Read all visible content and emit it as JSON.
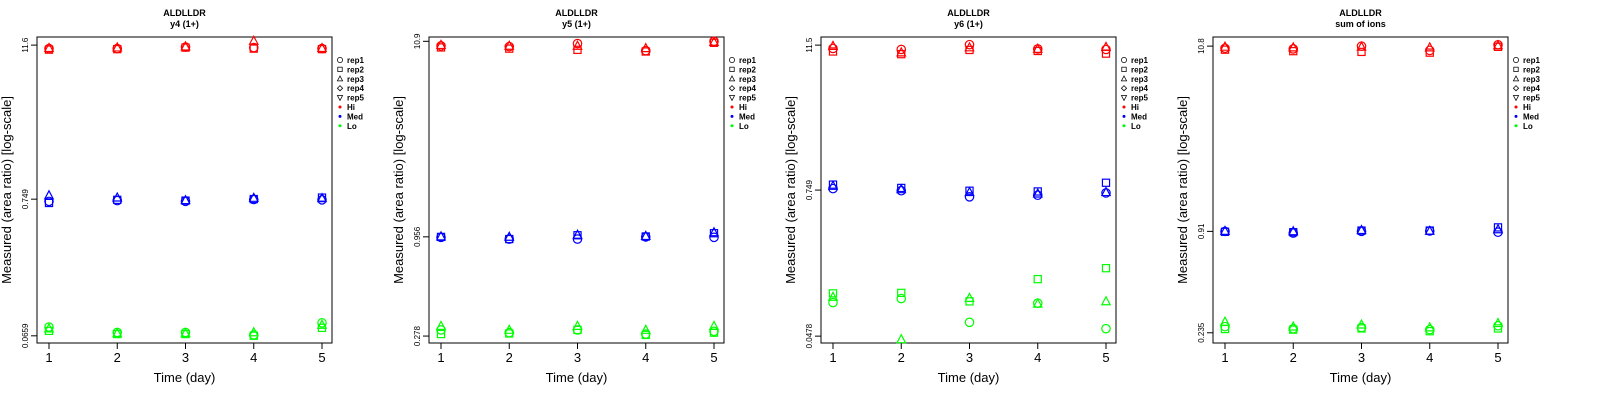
{
  "chart_data": [
    {
      "type": "scatter",
      "title": "ALDLLDR",
      "subtitle": "y4 (1+)",
      "xlabel": "Time (day)",
      "ylabel": "Measured (area ratio) [log-scale]",
      "x_ticks": [
        "1",
        "2",
        "3",
        "4",
        "5"
      ],
      "y_ticks": [
        {
          "value": 0.0659,
          "label": "0.0659"
        },
        {
          "value": 0.749,
          "label": "0.749"
        },
        {
          "value": 11.6,
          "label": "11.6"
        }
      ],
      "ylim": [
        0.058,
        13.4
      ],
      "log_y": true,
      "legend": {
        "position": "right",
        "entries": [
          {
            "label": "rep1",
            "marker": "circle"
          },
          {
            "label": "rep2",
            "marker": "square"
          },
          {
            "label": "rep3",
            "marker": "triangle-up"
          },
          {
            "label": "rep4",
            "marker": "diamond"
          },
          {
            "label": "rep5",
            "marker": "triangle-down"
          },
          {
            "label": "Hi",
            "color": "#ff0000"
          },
          {
            "label": "Med",
            "color": "#0000ff"
          },
          {
            "label": "Lo",
            "color": "#00ff00"
          }
        ]
      },
      "colors": {
        "Hi": "#ff0000",
        "Med": "#0000ff",
        "Lo": "#00ff00"
      },
      "series": [
        {
          "group": "Hi",
          "rep": "rep1",
          "x": [
            1,
            2,
            3,
            4,
            5
          ],
          "y": [
            10.9,
            10.9,
            11.2,
            11.1,
            10.9
          ]
        },
        {
          "group": "Hi",
          "rep": "rep2",
          "x": [
            1,
            2,
            3,
            4,
            5
          ],
          "y": [
            10.7,
            10.8,
            11.1,
            10.9,
            10.8
          ]
        },
        {
          "group": "Hi",
          "rep": "rep3",
          "x": [
            1,
            2,
            3,
            4,
            5
          ],
          "y": [
            11.0,
            11.1,
            11.3,
            12.5,
            11.0
          ]
        },
        {
          "group": "Med",
          "rep": "rep1",
          "x": [
            1,
            2,
            3,
            4,
            5
          ],
          "y": [
            0.72,
            0.73,
            0.72,
            0.745,
            0.74
          ]
        },
        {
          "group": "Med",
          "rep": "rep2",
          "x": [
            1,
            2,
            3,
            4,
            5
          ],
          "y": [
            0.7,
            0.74,
            0.73,
            0.75,
            0.77
          ]
        },
        {
          "group": "Med",
          "rep": "rep3",
          "x": [
            1,
            2,
            3,
            4,
            5
          ],
          "y": [
            0.8,
            0.77,
            0.735,
            0.765,
            0.76
          ]
        },
        {
          "group": "Lo",
          "rep": "rep1",
          "x": [
            1,
            2,
            3,
            4,
            5
          ],
          "y": [
            0.077,
            0.07,
            0.07,
            0.067,
            0.083
          ]
        },
        {
          "group": "Lo",
          "rep": "rep2",
          "x": [
            1,
            2,
            3,
            4,
            5
          ],
          "y": [
            0.072,
            0.068,
            0.068,
            0.066,
            0.076
          ]
        },
        {
          "group": "Lo",
          "rep": "rep3",
          "x": [
            1,
            2,
            3,
            4,
            5
          ],
          "y": [
            0.075,
            0.069,
            0.069,
            0.07,
            0.08
          ]
        }
      ]
    },
    {
      "type": "scatter",
      "title": "ALDLLDR",
      "subtitle": "y5 (1+)",
      "xlabel": "Time (day)",
      "ylabel": "Measured (area ratio) [log-scale]",
      "x_ticks": [
        "1",
        "2",
        "3",
        "4",
        "5"
      ],
      "y_ticks": [
        {
          "value": 0.278,
          "label": "0.278"
        },
        {
          "value": 0.956,
          "label": "0.956"
        },
        {
          "value": 10.9,
          "label": "10.9"
        }
      ],
      "ylim": [
        0.255,
        11.5
      ],
      "log_y": true,
      "legend": {
        "position": "right",
        "entries": [
          {
            "label": "rep1",
            "marker": "circle"
          },
          {
            "label": "rep2",
            "marker": "square"
          },
          {
            "label": "rep3",
            "marker": "triangle-up"
          },
          {
            "label": "rep4",
            "marker": "diamond"
          },
          {
            "label": "rep5",
            "marker": "triangle-down"
          },
          {
            "label": "Hi",
            "color": "#ff0000"
          },
          {
            "label": "Med",
            "color": "#0000ff"
          },
          {
            "label": "Lo",
            "color": "#00ff00"
          }
        ]
      },
      "colors": {
        "Hi": "#ff0000",
        "Med": "#0000ff",
        "Lo": "#00ff00"
      },
      "series": [
        {
          "group": "Hi",
          "rep": "rep1",
          "x": [
            1,
            2,
            3,
            4,
            5
          ],
          "y": [
            10.3,
            10.2,
            10.6,
            9.7,
            10.9
          ]
        },
        {
          "group": "Hi",
          "rep": "rep2",
          "x": [
            1,
            2,
            3,
            4,
            5
          ],
          "y": [
            10.1,
            9.95,
            9.8,
            9.6,
            10.7
          ]
        },
        {
          "group": "Hi",
          "rep": "rep3",
          "x": [
            1,
            2,
            3,
            4,
            5
          ],
          "y": [
            10.4,
            10.3,
            10.3,
            10.0,
            10.8
          ]
        },
        {
          "group": "Med",
          "rep": "rep1",
          "x": [
            1,
            2,
            3,
            4,
            5
          ],
          "y": [
            0.95,
            0.93,
            0.93,
            0.955,
            0.95
          ]
        },
        {
          "group": "Med",
          "rep": "rep2",
          "x": [
            1,
            2,
            3,
            4,
            5
          ],
          "y": [
            0.955,
            0.93,
            0.975,
            0.96,
            1.0
          ]
        },
        {
          "group": "Med",
          "rep": "rep3",
          "x": [
            1,
            2,
            3,
            4,
            5
          ],
          "y": [
            0.96,
            0.955,
            0.98,
            0.965,
            1.01
          ]
        },
        {
          "group": "Lo",
          "rep": "rep1",
          "x": [
            1,
            2,
            3,
            4,
            5
          ],
          "y": [
            0.3,
            0.29,
            0.3,
            0.285,
            0.295
          ]
        },
        {
          "group": "Lo",
          "rep": "rep2",
          "x": [
            1,
            2,
            3,
            4,
            5
          ],
          "y": [
            0.285,
            0.287,
            0.3,
            0.282,
            0.29
          ]
        },
        {
          "group": "Lo",
          "rep": "rep3",
          "x": [
            1,
            2,
            3,
            4,
            5
          ],
          "y": [
            0.315,
            0.3,
            0.315,
            0.3,
            0.315
          ]
        }
      ]
    },
    {
      "type": "scatter",
      "title": "ALDLLDR",
      "subtitle": "y6 (1+)",
      "xlabel": "Time (day)",
      "ylabel": "Measured (area ratio) [log-scale]",
      "x_ticks": [
        "1",
        "2",
        "3",
        "4",
        "5"
      ],
      "y_ticks": [
        {
          "value": 0.0478,
          "label": "0.0478"
        },
        {
          "value": 0.749,
          "label": "0.749"
        },
        {
          "value": 11.5,
          "label": "11.5"
        }
      ],
      "ylim": [
        0.042,
        13.4
      ],
      "log_y": true,
      "legend": {
        "position": "right",
        "entries": [
          {
            "label": "rep1",
            "marker": "circle"
          },
          {
            "label": "rep2",
            "marker": "square"
          },
          {
            "label": "rep3",
            "marker": "triangle-up"
          },
          {
            "label": "rep4",
            "marker": "diamond"
          },
          {
            "label": "rep5",
            "marker": "triangle-down"
          },
          {
            "label": "Hi",
            "color": "#ff0000"
          },
          {
            "label": "Med",
            "color": "#0000ff"
          },
          {
            "label": "Lo",
            "color": "#00ff00"
          }
        ]
      },
      "colors": {
        "Hi": "#ff0000",
        "Med": "#0000ff",
        "Lo": "#00ff00"
      },
      "series": [
        {
          "group": "Hi",
          "rep": "rep1",
          "x": [
            1,
            2,
            3,
            4,
            5
          ],
          "y": [
            10.8,
            10.6,
            11.6,
            10.7,
            10.6
          ]
        },
        {
          "group": "Hi",
          "rep": "rep2",
          "x": [
            1,
            2,
            3,
            4,
            5
          ],
          "y": [
            10.2,
            9.7,
            10.5,
            10.3,
            9.8
          ]
        },
        {
          "group": "Hi",
          "rep": "rep3",
          "x": [
            1,
            2,
            3,
            4,
            5
          ],
          "y": [
            11.3,
            10.0,
            11.0,
            10.7,
            11.1
          ]
        },
        {
          "group": "Med",
          "rep": "rep1",
          "x": [
            1,
            2,
            3,
            4,
            5
          ],
          "y": [
            0.77,
            0.74,
            0.66,
            0.68,
            0.71
          ]
        },
        {
          "group": "Med",
          "rep": "rep2",
          "x": [
            1,
            2,
            3,
            4,
            5
          ],
          "y": [
            0.83,
            0.78,
            0.74,
            0.73,
            0.86
          ]
        },
        {
          "group": "Med",
          "rep": "rep3",
          "x": [
            1,
            2,
            3,
            4,
            5
          ],
          "y": [
            0.81,
            0.76,
            0.72,
            0.7,
            0.72
          ]
        },
        {
          "group": "Lo",
          "rep": "rep1",
          "x": [
            1,
            2,
            3,
            4,
            5
          ],
          "y": [
            0.09,
            0.097,
            0.062,
            0.089,
            0.055
          ]
        },
        {
          "group": "Lo",
          "rep": "rep2",
          "x": [
            1,
            2,
            3,
            4,
            5
          ],
          "y": [
            0.107,
            0.108,
            0.092,
            0.14,
            0.172
          ]
        },
        {
          "group": "Lo",
          "rep": "rep3",
          "x": [
            1,
            2,
            3,
            4,
            5
          ],
          "y": [
            0.1,
            0.045,
            0.098,
            0.088,
            0.092
          ]
        }
      ]
    },
    {
      "type": "scatter",
      "title": "ALDLLDR",
      "subtitle": "sum of ions",
      "xlabel": "Time (day)",
      "ylabel": "Measured (area ratio) [log-scale]",
      "x_ticks": [
        "1",
        "2",
        "3",
        "4",
        "5"
      ],
      "y_ticks": [
        {
          "value": 0.235,
          "label": "0.235"
        },
        {
          "value": 0.91,
          "label": "0.91"
        },
        {
          "value": 10.8,
          "label": "10.8"
        }
      ],
      "ylim": [
        0.205,
        12.2
      ],
      "log_y": true,
      "legend": {
        "position": "right",
        "entries": [
          {
            "label": "rep1",
            "marker": "circle"
          },
          {
            "label": "rep2",
            "marker": "square"
          },
          {
            "label": "rep3",
            "marker": "triangle-up"
          },
          {
            "label": "rep4",
            "marker": "diamond"
          },
          {
            "label": "rep5",
            "marker": "triangle-down"
          },
          {
            "label": "Hi",
            "color": "#ff0000"
          },
          {
            "label": "Med",
            "color": "#0000ff"
          },
          {
            "label": "Lo",
            "color": "#00ff00"
          }
        ]
      },
      "colors": {
        "Hi": "#ff0000",
        "Med": "#0000ff",
        "Lo": "#00ff00"
      },
      "series": [
        {
          "group": "Hi",
          "rep": "rep1",
          "x": [
            1,
            2,
            3,
            4,
            5
          ],
          "y": [
            10.5,
            10.4,
            10.8,
            10.2,
            11.0
          ]
        },
        {
          "group": "Hi",
          "rep": "rep2",
          "x": [
            1,
            2,
            3,
            4,
            5
          ],
          "y": [
            10.3,
            10.1,
            10.0,
            9.9,
            10.7
          ]
        },
        {
          "group": "Hi",
          "rep": "rep3",
          "x": [
            1,
            2,
            3,
            4,
            5
          ],
          "y": [
            10.7,
            10.6,
            10.7,
            10.6,
            10.9
          ]
        },
        {
          "group": "Med",
          "rep": "rep1",
          "x": [
            1,
            2,
            3,
            4,
            5
          ],
          "y": [
            0.91,
            0.89,
            0.91,
            0.915,
            0.9
          ]
        },
        {
          "group": "Med",
          "rep": "rep2",
          "x": [
            1,
            2,
            3,
            4,
            5
          ],
          "y": [
            0.905,
            0.9,
            0.92,
            0.92,
            0.96
          ]
        },
        {
          "group": "Med",
          "rep": "rep3",
          "x": [
            1,
            2,
            3,
            4,
            5
          ],
          "y": [
            0.915,
            0.91,
            0.925,
            0.915,
            0.935
          ]
        },
        {
          "group": "Lo",
          "rep": "rep1",
          "x": [
            1,
            2,
            3,
            4,
            5
          ],
          "y": [
            0.255,
            0.248,
            0.252,
            0.245,
            0.258
          ]
        },
        {
          "group": "Lo",
          "rep": "rep2",
          "x": [
            1,
            2,
            3,
            4,
            5
          ],
          "y": [
            0.247,
            0.245,
            0.249,
            0.24,
            0.249
          ]
        },
        {
          "group": "Lo",
          "rep": "rep3",
          "x": [
            1,
            2,
            3,
            4,
            5
          ],
          "y": [
            0.272,
            0.255,
            0.262,
            0.252,
            0.267
          ]
        }
      ]
    }
  ]
}
